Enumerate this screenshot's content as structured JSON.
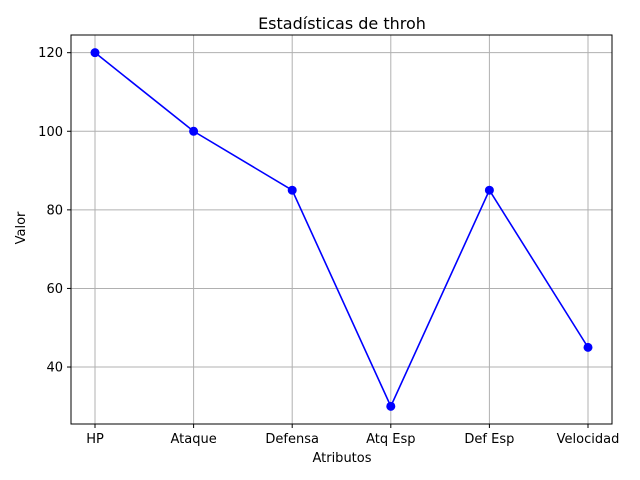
{
  "chart_data": {
    "type": "line",
    "title": "Estadísticas de throh",
    "xlabel": "Atributos",
    "ylabel": "Valor",
    "categories": [
      "HP",
      "Ataque",
      "Defensa",
      "Atq Esp",
      "Def Esp",
      "Velocidad"
    ],
    "series": [
      {
        "values": [
          120,
          100,
          85,
          30,
          85,
          45
        ],
        "color": "#0000ff",
        "marker": "circle"
      }
    ],
    "ylim": [
      25.5,
      124.5
    ],
    "yticks": [
      40,
      60,
      80,
      100,
      120
    ],
    "grid": true
  }
}
